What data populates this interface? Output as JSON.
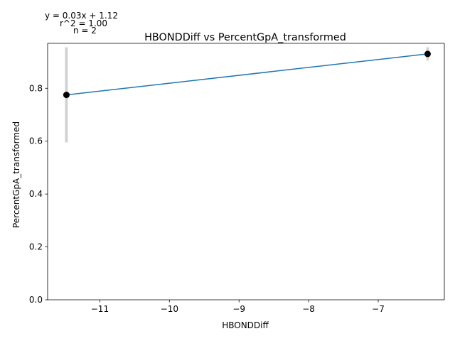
{
  "chart_data": {
    "type": "scatter",
    "title": "HBONDDiff vs PercentGpA_transformed",
    "xlabel": "HBONDDiff",
    "ylabel": "PercentGpA_transformed",
    "xlim": [
      -11.75,
      -6.05
    ],
    "ylim": [
      0.0,
      0.97
    ],
    "xticks": [
      -11,
      -10,
      -9,
      -8,
      -7
    ],
    "xtick_labels": [
      "−11",
      "−10",
      "−9",
      "−8",
      "−7"
    ],
    "yticks": [
      0.0,
      0.2,
      0.4,
      0.6,
      0.8
    ],
    "ytick_labels": [
      "0.0",
      "0.2",
      "0.4",
      "0.6",
      "0.8"
    ],
    "grid": false,
    "points": [
      {
        "x": -11.48,
        "y": 0.775,
        "err_low": 0.595,
        "err_high": 0.955
      },
      {
        "x": -6.29,
        "y": 0.93,
        "err_low": 0.905,
        "err_high": 0.955
      }
    ],
    "fit_line": {
      "x": [
        -11.48,
        -6.29
      ],
      "y": [
        0.775,
        0.93
      ]
    },
    "annotations": [
      "y = 0.03x + 1.12",
      "r^2 = 1.00",
      "n = 2"
    ],
    "colors": {
      "line": "#1f77b4",
      "points": "#000000",
      "error_bars": "#d3d3d3",
      "axes": "#000000"
    }
  }
}
